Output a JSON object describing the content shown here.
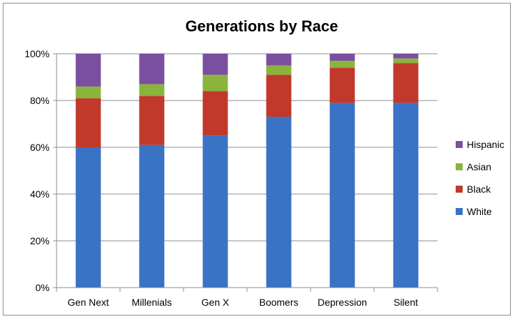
{
  "chart_data": {
    "type": "bar",
    "stacked": true,
    "percent": true,
    "title": "Generations by Race",
    "xlabel": "",
    "ylabel": "",
    "ylim": [
      0,
      100
    ],
    "yticks": [
      "0%",
      "20%",
      "40%",
      "60%",
      "80%",
      "100%"
    ],
    "grid": true,
    "legend_position": "right",
    "categories": [
      "Gen Next",
      "Millenials",
      "Gen X",
      "Boomers",
      "Depression",
      "Silent"
    ],
    "series": [
      {
        "name": "White",
        "color": "#3a72c4",
        "values": [
          60,
          61,
          65,
          73,
          79,
          79
        ]
      },
      {
        "name": "Black",
        "color": "#c0392b",
        "values": [
          21,
          21,
          19,
          18,
          15,
          17
        ]
      },
      {
        "name": "Asian",
        "color": "#8ab43d",
        "values": [
          5,
          5,
          7,
          4,
          3,
          2
        ]
      },
      {
        "name": "Hispanic",
        "color": "#7b4fa0",
        "values": [
          14,
          13,
          9,
          5,
          3,
          2
        ]
      }
    ]
  }
}
